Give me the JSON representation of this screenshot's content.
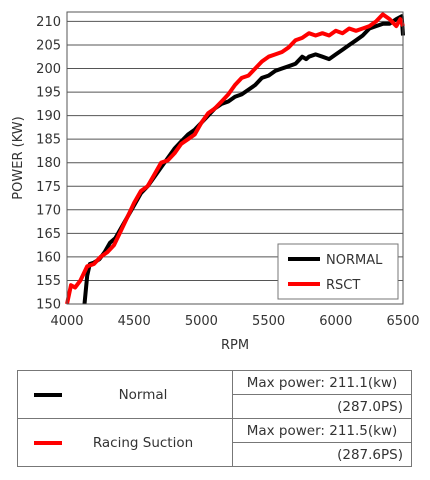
{
  "chart_data": {
    "type": "line",
    "xlabel": "RPM",
    "ylabel": "POWER (KW)",
    "xlim": [
      4000,
      6500
    ],
    "ylim": [
      150,
      212
    ],
    "x_ticks": [
      4000,
      4500,
      5000,
      5500,
      6000,
      6500
    ],
    "y_ticks": [
      150,
      155,
      160,
      165,
      170,
      175,
      180,
      185,
      190,
      195,
      200,
      205,
      210
    ],
    "grid": "horizontal",
    "legend_position": "bottom-right",
    "series": [
      {
        "name": "NORMAL",
        "color": "#000000",
        "points": [
          [
            4130,
            150
          ],
          [
            4150,
            156
          ],
          [
            4170,
            158.5
          ],
          [
            4200,
            158.8
          ],
          [
            4240,
            159.5
          ],
          [
            4280,
            161
          ],
          [
            4320,
            163
          ],
          [
            4360,
            164
          ],
          [
            4400,
            166
          ],
          [
            4450,
            168.5
          ],
          [
            4500,
            171
          ],
          [
            4550,
            173.5
          ],
          [
            4600,
            175
          ],
          [
            4650,
            177
          ],
          [
            4700,
            179
          ],
          [
            4750,
            181
          ],
          [
            4800,
            183
          ],
          [
            4850,
            184.5
          ],
          [
            4900,
            186
          ],
          [
            4950,
            187
          ],
          [
            5000,
            188.5
          ],
          [
            5050,
            190
          ],
          [
            5100,
            191.5
          ],
          [
            5150,
            192.5
          ],
          [
            5200,
            193
          ],
          [
            5250,
            194
          ],
          [
            5300,
            194.5
          ],
          [
            5350,
            195.5
          ],
          [
            5400,
            196.5
          ],
          [
            5450,
            198
          ],
          [
            5500,
            198.5
          ],
          [
            5550,
            199.5
          ],
          [
            5600,
            200
          ],
          [
            5650,
            200.5
          ],
          [
            5700,
            201
          ],
          [
            5750,
            202.5
          ],
          [
            5780,
            202
          ],
          [
            5800,
            202.5
          ],
          [
            5850,
            203
          ],
          [
            5900,
            202.5
          ],
          [
            5950,
            202
          ],
          [
            6000,
            203
          ],
          [
            6050,
            204
          ],
          [
            6100,
            205
          ],
          [
            6150,
            206
          ],
          [
            6200,
            207
          ],
          [
            6250,
            208.5
          ],
          [
            6300,
            209
          ],
          [
            6350,
            209.5
          ],
          [
            6400,
            209.5
          ],
          [
            6450,
            210.5
          ],
          [
            6490,
            211.1
          ],
          [
            6500,
            207
          ]
        ]
      },
      {
        "name": "RSCT",
        "color": "#ff0000",
        "points": [
          [
            4000,
            150
          ],
          [
            4030,
            154
          ],
          [
            4060,
            153.5
          ],
          [
            4100,
            155
          ],
          [
            4150,
            158
          ],
          [
            4200,
            158.5
          ],
          [
            4250,
            160
          ],
          [
            4300,
            161
          ],
          [
            4350,
            162.5
          ],
          [
            4400,
            165.5
          ],
          [
            4450,
            168.5
          ],
          [
            4500,
            171.5
          ],
          [
            4550,
            174
          ],
          [
            4600,
            175
          ],
          [
            4650,
            177.5
          ],
          [
            4700,
            180
          ],
          [
            4750,
            180.5
          ],
          [
            4800,
            182
          ],
          [
            4850,
            184
          ],
          [
            4900,
            185
          ],
          [
            4950,
            186
          ],
          [
            5000,
            188.5
          ],
          [
            5050,
            190.5
          ],
          [
            5100,
            191.5
          ],
          [
            5150,
            193
          ],
          [
            5200,
            194.5
          ],
          [
            5250,
            196.5
          ],
          [
            5300,
            198
          ],
          [
            5350,
            198.5
          ],
          [
            5400,
            200
          ],
          [
            5450,
            201.5
          ],
          [
            5500,
            202.5
          ],
          [
            5550,
            203
          ],
          [
            5600,
            203.5
          ],
          [
            5650,
            204.5
          ],
          [
            5700,
            206
          ],
          [
            5750,
            206.5
          ],
          [
            5800,
            207.5
          ],
          [
            5850,
            207
          ],
          [
            5900,
            207.5
          ],
          [
            5950,
            207
          ],
          [
            6000,
            208
          ],
          [
            6050,
            207.5
          ],
          [
            6100,
            208.5
          ],
          [
            6150,
            208
          ],
          [
            6200,
            208.5
          ],
          [
            6250,
            209
          ],
          [
            6300,
            210
          ],
          [
            6350,
            211.5
          ],
          [
            6400,
            210.5
          ],
          [
            6450,
            209
          ],
          [
            6480,
            210.5
          ],
          [
            6500,
            209
          ]
        ]
      }
    ]
  },
  "table": {
    "rows": [
      {
        "name": "Normal",
        "color": "#000000",
        "max_power": "Max power: 211.1(kw)",
        "ps": "(287.0PS)"
      },
      {
        "name": "Racing Suction",
        "color": "#ff0000",
        "max_power": "Max power: 211.5(kw)",
        "ps": "(287.6PS)"
      }
    ]
  }
}
